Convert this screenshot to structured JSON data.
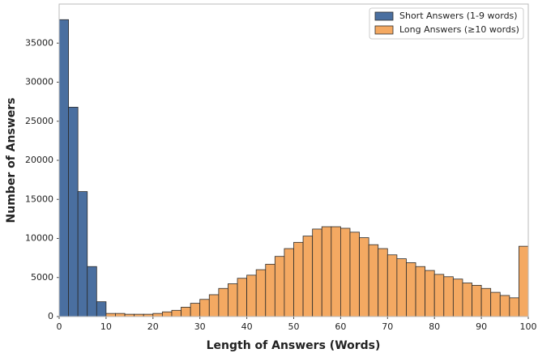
{
  "chart_data": {
    "type": "histogram",
    "xlabel": "Length of Answers (Words)",
    "ylabel": "Number of Answers",
    "xlim": [
      0,
      100
    ],
    "ylim": [
      0,
      40000
    ],
    "xticks": [
      0,
      10,
      20,
      30,
      40,
      50,
      60,
      70,
      80,
      90,
      100
    ],
    "yticks": [
      0,
      5000,
      10000,
      15000,
      20000,
      25000,
      30000,
      35000
    ],
    "grid": false,
    "legend": "upper right",
    "series": [
      {
        "name": "Short Answers (1-9 words)",
        "color": "#4a6fa0",
        "bins": [
          0,
          2,
          4,
          6,
          8,
          10
        ],
        "values": [
          38000,
          26800,
          16000,
          6400,
          1900
        ]
      },
      {
        "name": "Long Answers (≥10 words)",
        "color": "#f4a962",
        "bins": [
          10,
          12,
          14,
          16,
          18,
          20,
          22,
          24,
          26,
          28,
          30,
          32,
          34,
          36,
          38,
          40,
          42,
          44,
          46,
          48,
          50,
          52,
          54,
          56,
          58,
          60,
          62,
          64,
          66,
          68,
          70,
          72,
          74,
          76,
          78,
          80,
          82,
          84,
          86,
          88,
          90,
          92,
          94,
          96,
          98,
          100
        ],
        "values": [
          400,
          400,
          300,
          300,
          300,
          400,
          600,
          800,
          1200,
          1700,
          2200,
          2800,
          3600,
          4200,
          4900,
          5300,
          6000,
          6700,
          7700,
          8700,
          9500,
          10300,
          11200,
          11500,
          11500,
          11300,
          10800,
          10100,
          9200,
          8700,
          7900,
          7400,
          6900,
          6400,
          5900,
          5400,
          5100,
          4800,
          4300,
          4000,
          3600,
          3100,
          2700,
          2400,
          9000
        ]
      }
    ]
  }
}
